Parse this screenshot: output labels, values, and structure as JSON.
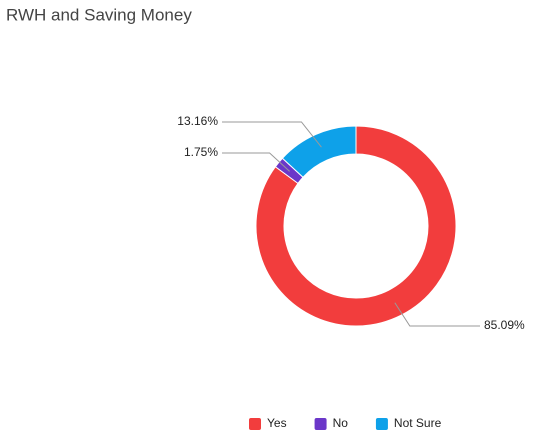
{
  "chart_data": {
    "type": "donut",
    "title": "RWH and Saving Money",
    "categories": [
      "Yes",
      "No",
      "Not Sure"
    ],
    "values": [
      85.09,
      1.75,
      13.16
    ],
    "value_labels": [
      "85.09%",
      "1.75%",
      "13.16%"
    ],
    "colors": [
      "#f23d3d",
      "#6b37c9",
      "#0ea1e9"
    ],
    "legend": "bottom"
  }
}
